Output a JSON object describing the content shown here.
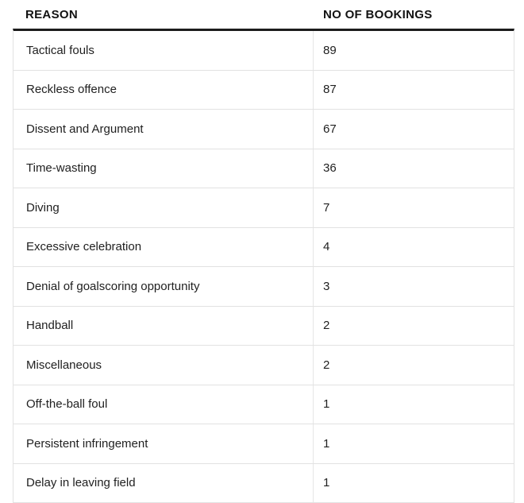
{
  "chart_data": {
    "type": "table",
    "columns": [
      "REASON",
      "NO OF BOOKINGS"
    ],
    "rows": [
      [
        "Tactical fouls",
        89
      ],
      [
        "Reckless offence",
        87
      ],
      [
        "Dissent and Argument",
        67
      ],
      [
        "Time-wasting",
        36
      ],
      [
        "Diving",
        7
      ],
      [
        "Excessive celebration",
        4
      ],
      [
        "Denial of goalscoring opportunity",
        3
      ],
      [
        "Handball",
        2
      ],
      [
        "Miscellaneous",
        2
      ],
      [
        "Off-the-ball foul",
        1
      ],
      [
        "Persistent infringement",
        1
      ],
      [
        "Delay in leaving field",
        1
      ]
    ]
  },
  "colors": {
    "header_rule": "#1c1c1c",
    "row_border": "#e2e2e2",
    "column_divider": "#e6e6e6",
    "header_text": "#121212",
    "body_text": "#212121",
    "background": "#ffffff"
  }
}
